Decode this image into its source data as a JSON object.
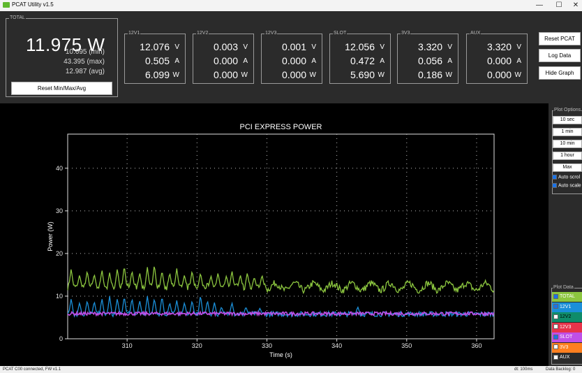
{
  "window": {
    "title": "PCAT Utility v1.5",
    "icon": "pcat-logo-icon",
    "minimize": "—",
    "maximize": "☐",
    "close": "✕"
  },
  "total": {
    "label": "TOTAL",
    "value": "11.975 W",
    "min": "10.695 (min)",
    "max": "43.395 (max)",
    "avg": "12.987 (avg)",
    "reset_button": "Reset Min/Max/Avg"
  },
  "rails": [
    {
      "label": "12V1",
      "volts": "12.076",
      "amps": "0.505",
      "watts": "6.099"
    },
    {
      "label": "12V2",
      "volts": "0.003",
      "amps": "0.000",
      "watts": "0.000"
    },
    {
      "label": "12V3",
      "volts": "0.001",
      "amps": "0.000",
      "watts": "0.000"
    },
    {
      "label": "SLOT",
      "volts": "12.056",
      "amps": "0.472",
      "watts": "5.690"
    },
    {
      "label": "3V3",
      "volts": "3.320",
      "amps": "0.056",
      "watts": "0.186"
    },
    {
      "label": "AUX",
      "volts": "3.320",
      "amps": "0.000",
      "watts": "0.000"
    }
  ],
  "units": {
    "v": "V",
    "a": "A",
    "w": "W"
  },
  "actions": {
    "reset_pcat": "Reset PCAT",
    "log_data": "Log Data",
    "hide_graph": "Hide Graph"
  },
  "plot_options": {
    "label": "Plot Options",
    "ranges": [
      "10 sec",
      "1 min",
      "10 min",
      "1 hour",
      "Max"
    ],
    "auto_scroll": "Auto scrol",
    "auto_scale": "Auto scale"
  },
  "plot_data": {
    "label": "Plot Data",
    "items": [
      {
        "label": "TOTAL",
        "color": "#8cc63f",
        "text_color": "#ffffff",
        "checked": true
      },
      {
        "label": "12V1",
        "color": "#1b8fd8",
        "text_color": "#ffffff",
        "checked": true
      },
      {
        "label": "12V2",
        "color": "#0f8c6a",
        "text_color": "#000000",
        "checked": false
      },
      {
        "label": "12V3",
        "color": "#e8334a",
        "text_color": "#ffffff",
        "checked": false
      },
      {
        "label": "SLOT",
        "color": "#c04fe8",
        "text_color": "#ffffff",
        "checked": true
      },
      {
        "label": "3V3",
        "color": "#ff7f1f",
        "text_color": "#ffffff",
        "checked": false
      },
      {
        "label": "AUX",
        "color": "#2b2b2b",
        "text_color": "#ffffff",
        "checked": false
      }
    ]
  },
  "status": {
    "left": "PCAT C00 connected, FW v1.1",
    "dt": "dt: 100ms",
    "backlog": "Data Backlog: 0"
  },
  "chart_data": {
    "type": "line",
    "title": "PCI EXPRESS POWER",
    "xlabel": "Time (s)",
    "ylabel": "Power (W)",
    "xlim": [
      301.5,
      362.5
    ],
    "ylim": [
      0,
      48
    ],
    "xticks": [
      310,
      320,
      330,
      340,
      350,
      360
    ],
    "yticks": [
      0,
      10,
      20,
      30,
      40
    ],
    "grid": true,
    "legend": "none",
    "series": [
      {
        "name": "TOTAL",
        "color": "#8cc63f",
        "baseline": 12.2,
        "noise": 0.8,
        "spikes": [
          [
            302.0,
            16.5
          ],
          [
            303.2,
            15.0
          ],
          [
            304.3,
            16.0
          ],
          [
            305.3,
            15.2
          ],
          [
            306.4,
            16.2
          ],
          [
            307.5,
            15.5
          ],
          [
            308.6,
            16.5
          ],
          [
            309.6,
            17.2
          ],
          [
            310.7,
            16.0
          ],
          [
            311.8,
            15.5
          ],
          [
            312.9,
            16.8
          ],
          [
            313.9,
            17.5
          ],
          [
            315.0,
            16.0
          ],
          [
            316.1,
            15.5
          ],
          [
            317.1,
            16.5
          ],
          [
            318.2,
            15.0
          ],
          [
            319.3,
            16.0
          ],
          [
            320.5,
            15.5
          ],
          [
            322.0,
            14.8
          ],
          [
            323.0,
            15.5
          ],
          [
            324.2,
            14.8
          ],
          [
            325.0,
            16.0
          ],
          [
            326.2,
            15.0
          ],
          [
            327.2,
            15.5
          ],
          [
            328.2,
            14.5
          ],
          [
            329.3,
            15.0
          ]
        ]
      },
      {
        "name": "12V1",
        "color": "#1b8fd8",
        "baseline": 5.8,
        "noise": 0.6,
        "spikes": [
          [
            302.0,
            9.5
          ],
          [
            303.2,
            8.5
          ],
          [
            304.3,
            9.0
          ],
          [
            305.3,
            8.8
          ],
          [
            306.4,
            9.5
          ],
          [
            307.5,
            10.0
          ],
          [
            308.6,
            9.5
          ],
          [
            309.6,
            10.0
          ],
          [
            310.7,
            9.5
          ],
          [
            311.8,
            9.0
          ],
          [
            312.9,
            10.0
          ],
          [
            313.9,
            9.5
          ],
          [
            315.0,
            10.0
          ],
          [
            316.1,
            8.5
          ],
          [
            317.1,
            9.0
          ],
          [
            318.2,
            8.5
          ],
          [
            319.3,
            9.0
          ],
          [
            320.5,
            10.3
          ],
          [
            321.5,
            9.0
          ],
          [
            322.5,
            8.5
          ],
          [
            323.5,
            7.5
          ],
          [
            325.0,
            8.5
          ],
          [
            327.0,
            7.5
          ],
          [
            329.0,
            7.2
          ],
          [
            343.0,
            7.5
          ]
        ]
      },
      {
        "name": "SLOT",
        "color": "#c04fe8",
        "baseline": 5.9,
        "noise": 0.4,
        "spikes": []
      }
    ]
  }
}
